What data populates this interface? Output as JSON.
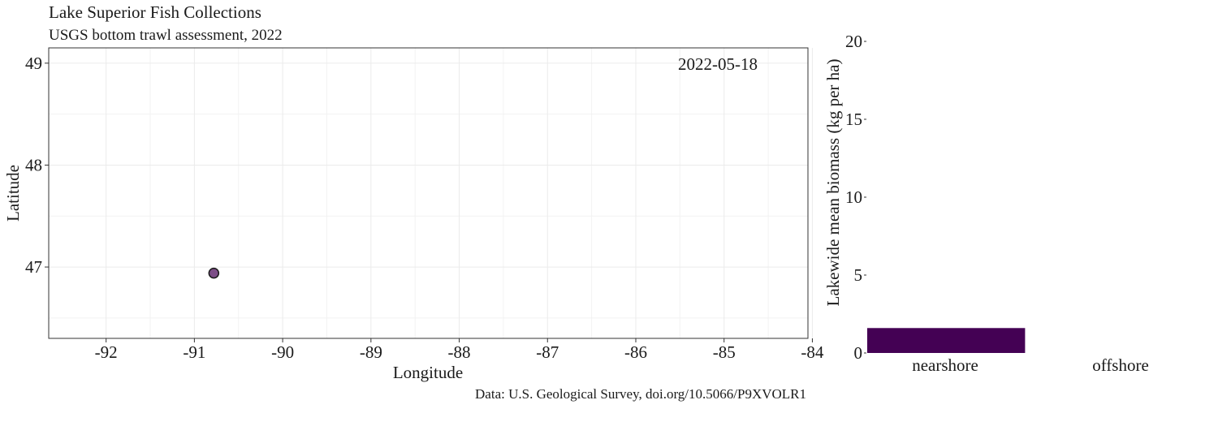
{
  "title": "Lake Superior Fish Collections",
  "subtitle": "USGS bottom trawl assessment, 2022",
  "caption": "Data: U.S. Geological Survey, doi.org/10.5066/P9XVOLR1",
  "chart_data": [
    {
      "type": "scatter",
      "xlabel": "Longitude",
      "ylabel": "Latitude",
      "xlim": [
        -92.65,
        -84.05
      ],
      "ylim": [
        46.3,
        49.15
      ],
      "x_ticks": [
        -92,
        -91,
        -90,
        -89,
        -88,
        -87,
        -86,
        -85,
        -84
      ],
      "y_ticks": [
        47,
        48,
        49
      ],
      "annotation": "2022-05-18",
      "grid": true,
      "points": [
        {
          "x": -90.78,
          "y": 46.94
        }
      ],
      "point_color": "#440154"
    },
    {
      "type": "bar",
      "xlabel": "",
      "ylabel": "Lakewide mean biomass (kg per ha)",
      "categories": [
        "nearshore",
        "offshore"
      ],
      "values": [
        1.6,
        0
      ],
      "ylim": [
        0,
        20
      ],
      "y_ticks": [
        0,
        5,
        10,
        15,
        20
      ],
      "bar_color": "#440154",
      "grid": false
    }
  ]
}
